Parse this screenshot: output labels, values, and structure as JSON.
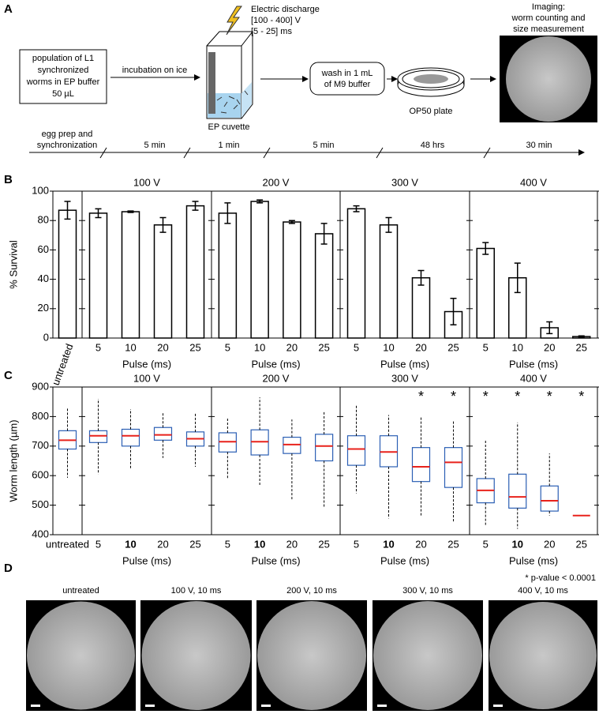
{
  "panel_a": {
    "letter": "A",
    "start_box": [
      "population of L1",
      "synchronized",
      "worms in EP buffer",
      "50 µL"
    ],
    "step1": "incubation on ice",
    "discharge": [
      "Electric discharge",
      "[100 - 400] V",
      "[5 - 25] ms"
    ],
    "cuvette": "EP cuvette",
    "wash": [
      "wash in 1 mL",
      "of M9 buffer"
    ],
    "plate": "OP50 plate",
    "imaging": [
      "Imaging:",
      "worm counting and",
      "size measurement"
    ],
    "timeline": [
      [
        "egg prep and",
        "synchronization"
      ],
      [
        "5 min"
      ],
      [
        "1 min"
      ],
      [
        "5 min"
      ],
      [
        "48 hrs"
      ],
      [
        "30 min"
      ]
    ]
  },
  "chart_data": [
    {
      "type": "bar",
      "panel": "B",
      "ylabel": "% Survival",
      "xlabel": "Pulse (ms)",
      "ylim": [
        0,
        100
      ],
      "yticks": [
        0,
        20,
        40,
        60,
        80,
        100
      ],
      "color": "#000000",
      "control": {
        "label": "untreated",
        "value": 87,
        "error": 6
      },
      "groups": [
        {
          "title": "100 V",
          "categories": [
            "5",
            "10",
            "20",
            "25"
          ],
          "values": [
            85,
            86,
            77,
            90
          ],
          "errors": [
            3,
            0.5,
            5,
            3
          ]
        },
        {
          "title": "200 V",
          "categories": [
            "5",
            "10",
            "20",
            "25"
          ],
          "values": [
            85,
            93,
            79,
            71
          ],
          "errors": [
            7,
            1,
            1,
            7
          ]
        },
        {
          "title": "300 V",
          "categories": [
            "5",
            "10",
            "20",
            "25"
          ],
          "values": [
            88,
            77,
            41,
            18
          ],
          "errors": [
            2,
            5,
            5,
            9
          ]
        },
        {
          "title": "400 V",
          "categories": [
            "5",
            "10",
            "20",
            "25"
          ],
          "values": [
            61,
            41,
            7,
            1
          ],
          "errors": [
            4,
            10,
            4,
            0.5
          ]
        }
      ]
    },
    {
      "type": "box",
      "panel": "C",
      "ylabel": "Worm length (µm)",
      "xlabel": "Pulse (ms)",
      "ylim": [
        400,
        900
      ],
      "yticks": [
        400,
        500,
        600,
        700,
        800,
        900
      ],
      "box_color": "#2b5fb4",
      "median_color": "#e8221b",
      "note": "* p-value < 0.0001",
      "control": {
        "label": "untreated",
        "q1": 690,
        "median": 720,
        "q3": 752,
        "whislo": 593,
        "whishi": 830
      },
      "groups": [
        {
          "title": "100 V",
          "categories": [
            "5",
            "10",
            "20",
            "25"
          ],
          "boxes": [
            {
              "q1": 712,
              "median": 735,
              "q3": 752,
              "whislo": 605,
              "whishi": 860
            },
            {
              "q1": 700,
              "median": 735,
              "q3": 757,
              "whislo": 620,
              "whishi": 825
            },
            {
              "q1": 720,
              "median": 738,
              "q3": 763,
              "whislo": 660,
              "whishi": 815
            },
            {
              "q1": 700,
              "median": 725,
              "q3": 748,
              "whislo": 630,
              "whishi": 810
            }
          ]
        },
        {
          "title": "200 V",
          "categories": [
            "5",
            "10",
            "20",
            "25"
          ],
          "boxes": [
            {
              "q1": 680,
              "median": 715,
              "q3": 745,
              "whislo": 590,
              "whishi": 795
            },
            {
              "q1": 670,
              "median": 715,
              "q3": 755,
              "whislo": 565,
              "whishi": 865
            },
            {
              "q1": 675,
              "median": 705,
              "q3": 730,
              "whislo": 520,
              "whishi": 790
            },
            {
              "q1": 650,
              "median": 700,
              "q3": 740,
              "whislo": 490,
              "whishi": 820
            }
          ]
        },
        {
          "title": "300 V",
          "categories": [
            "5",
            "10",
            "20",
            "25"
          ],
          "boxes": [
            {
              "q1": 635,
              "median": 690,
              "q3": 735,
              "whislo": 540,
              "whishi": 840
            },
            {
              "q1": 630,
              "median": 680,
              "q3": 735,
              "whislo": 455,
              "whishi": 805
            },
            {
              "q1": 580,
              "median": 630,
              "q3": 695,
              "whislo": 465,
              "whishi": 800,
              "sig": "*"
            },
            {
              "q1": 560,
              "median": 645,
              "q3": 695,
              "whislo": 440,
              "whishi": 785,
              "sig": "*"
            }
          ]
        },
        {
          "title": "400 V",
          "categories": [
            "5",
            "10",
            "20",
            "25"
          ],
          "boxes": [
            {
              "q1": 508,
              "median": 550,
              "q3": 590,
              "whislo": 430,
              "whishi": 720,
              "sig": "*"
            },
            {
              "q1": 490,
              "median": 528,
              "q3": 605,
              "whislo": 420,
              "whishi": 780,
              "sig": "*"
            },
            {
              "q1": 480,
              "median": 515,
              "q3": 565,
              "whislo": 465,
              "whishi": 675,
              "sig": "*"
            },
            {
              "median": 465,
              "sig": "*"
            }
          ]
        }
      ]
    }
  ],
  "panel_d": {
    "letter": "D",
    "images": [
      "untreated",
      "100 V, 10 ms",
      "200 V, 10 ms",
      "300 V, 10 ms",
      "400 V, 10 ms"
    ]
  }
}
